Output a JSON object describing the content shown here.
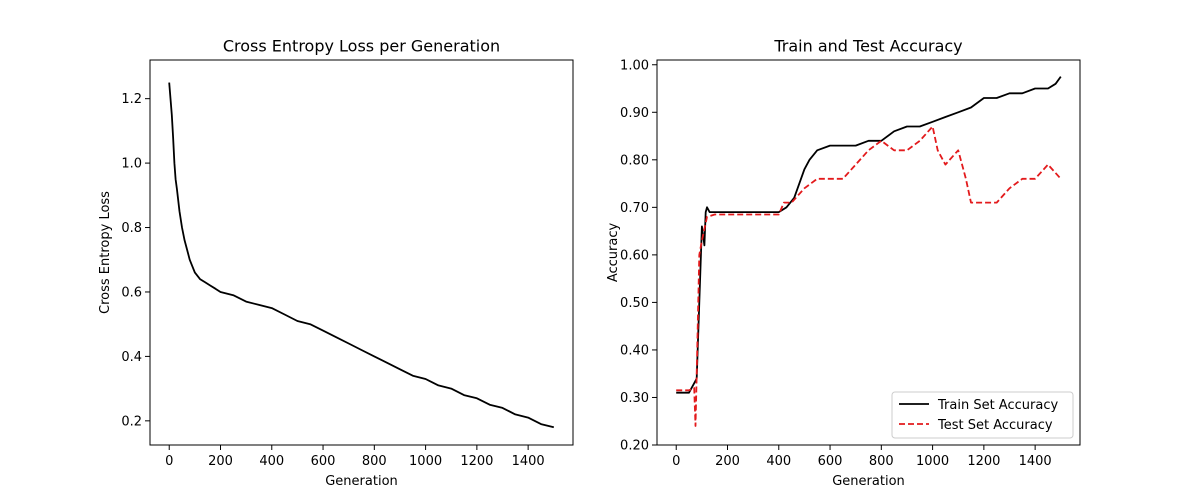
{
  "chart_data": [
    {
      "type": "line",
      "title": "Cross Entropy Loss per Generation",
      "xlabel": "Generation",
      "ylabel": "Cross Entropy Loss",
      "xlim": [
        -75,
        1575
      ],
      "ylim": [
        0.125,
        1.32
      ],
      "xticks": [
        0,
        200,
        400,
        600,
        800,
        1000,
        1200,
        1400
      ],
      "yticks": [
        0.2,
        0.4,
        0.6,
        0.8,
        1.0,
        1.2
      ],
      "legend": null,
      "series": [
        {
          "color": "#000000",
          "style": "solid",
          "x": [
            0,
            5,
            10,
            15,
            20,
            25,
            30,
            40,
            50,
            60,
            70,
            80,
            90,
            100,
            120,
            140,
            160,
            180,
            200,
            250,
            300,
            350,
            400,
            450,
            500,
            550,
            600,
            650,
            700,
            750,
            800,
            850,
            900,
            950,
            1000,
            1050,
            1100,
            1150,
            1200,
            1250,
            1300,
            1350,
            1400,
            1450,
            1500
          ],
          "values": [
            1.25,
            1.2,
            1.15,
            1.08,
            1.0,
            0.95,
            0.92,
            0.85,
            0.8,
            0.76,
            0.73,
            0.7,
            0.68,
            0.66,
            0.64,
            0.63,
            0.62,
            0.61,
            0.6,
            0.59,
            0.57,
            0.56,
            0.55,
            0.53,
            0.51,
            0.5,
            0.48,
            0.46,
            0.44,
            0.42,
            0.4,
            0.38,
            0.36,
            0.34,
            0.33,
            0.31,
            0.3,
            0.28,
            0.27,
            0.25,
            0.24,
            0.22,
            0.21,
            0.19,
            0.18
          ]
        }
      ]
    },
    {
      "type": "line",
      "title": "Train and Test Accuracy",
      "xlabel": "Generation",
      "ylabel": "Accuracy",
      "xlim": [
        -75,
        1575
      ],
      "ylim": [
        0.2,
        1.01
      ],
      "xticks": [
        0,
        200,
        400,
        600,
        800,
        1000,
        1200,
        1400
      ],
      "yticks": [
        0.2,
        0.3,
        0.4,
        0.5,
        0.6,
        0.7,
        0.8,
        0.9,
        1.0
      ],
      "legend": "lower-right",
      "series": [
        {
          "name": "Train Set Accuracy",
          "color": "#000000",
          "style": "solid",
          "x": [
            0,
            50,
            70,
            80,
            90,
            100,
            110,
            115,
            120,
            130,
            140,
            200,
            300,
            400,
            430,
            460,
            480,
            500,
            520,
            550,
            600,
            650,
            700,
            750,
            800,
            850,
            900,
            950,
            1000,
            1050,
            1100,
            1150,
            1200,
            1250,
            1300,
            1350,
            1400,
            1450,
            1480,
            1500
          ],
          "values": [
            0.31,
            0.31,
            0.33,
            0.34,
            0.5,
            0.66,
            0.62,
            0.69,
            0.7,
            0.69,
            0.69,
            0.69,
            0.69,
            0.69,
            0.7,
            0.72,
            0.75,
            0.78,
            0.8,
            0.82,
            0.83,
            0.83,
            0.83,
            0.84,
            0.84,
            0.86,
            0.87,
            0.87,
            0.88,
            0.89,
            0.9,
            0.91,
            0.93,
            0.93,
            0.94,
            0.94,
            0.95,
            0.95,
            0.96,
            0.975
          ]
        },
        {
          "name": "Test Set Accuracy",
          "color": "#e31a1c",
          "style": "dashed",
          "x": [
            0,
            50,
            70,
            75,
            80,
            90,
            100,
            120,
            150,
            200,
            300,
            400,
            420,
            450,
            500,
            550,
            650,
            700,
            750,
            800,
            850,
            900,
            950,
            1000,
            1020,
            1050,
            1100,
            1130,
            1150,
            1200,
            1250,
            1300,
            1350,
            1400,
            1450,
            1500
          ],
          "values": [
            0.315,
            0.315,
            0.32,
            0.24,
            0.35,
            0.6,
            0.63,
            0.68,
            0.685,
            0.685,
            0.685,
            0.685,
            0.71,
            0.71,
            0.74,
            0.76,
            0.76,
            0.79,
            0.82,
            0.84,
            0.82,
            0.82,
            0.84,
            0.87,
            0.82,
            0.79,
            0.82,
            0.76,
            0.71,
            0.71,
            0.71,
            0.74,
            0.76,
            0.76,
            0.79,
            0.76
          ]
        }
      ]
    }
  ]
}
